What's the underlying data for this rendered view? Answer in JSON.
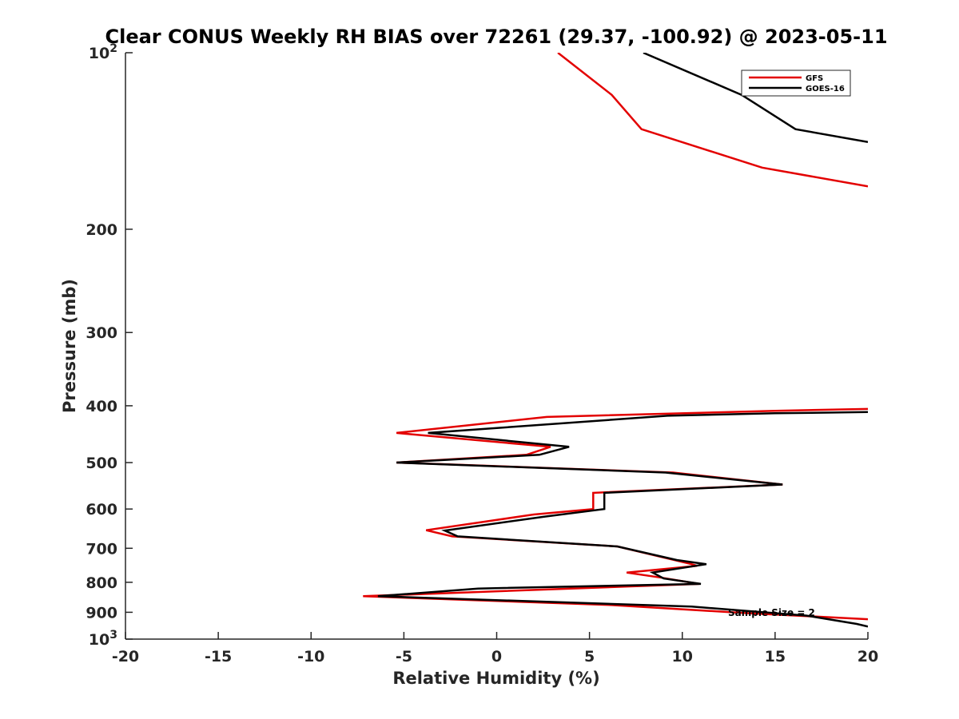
{
  "chart_data": {
    "type": "line",
    "title": "Clear CONUS Weekly RH BIAS over 72261 (29.37, -100.92) @ 2023-05-11",
    "xlabel": "Relative Humidity (%)",
    "ylabel": "Pressure (mb)",
    "xlim": [
      -20,
      20
    ],
    "ylim": [
      100,
      1000
    ],
    "yscale": "log",
    "y_reversed": true,
    "x_ticks": [
      "-20",
      "-15",
      "-10",
      "-5",
      "0",
      "5",
      "10",
      "15",
      "20"
    ],
    "y_ticks": [
      {
        "value": 100,
        "label": "10",
        "sup": "2"
      },
      {
        "value": 200,
        "label": "200",
        "sup": ""
      },
      {
        "value": 300,
        "label": "300",
        "sup": ""
      },
      {
        "value": 400,
        "label": "400",
        "sup": ""
      },
      {
        "value": 500,
        "label": "500",
        "sup": ""
      },
      {
        "value": 600,
        "label": "600",
        "sup": ""
      },
      {
        "value": 700,
        "label": "700",
        "sup": ""
      },
      {
        "value": 800,
        "label": "800",
        "sup": ""
      },
      {
        "value": 900,
        "label": "900",
        "sup": ""
      },
      {
        "value": 1000,
        "label": "10",
        "sup": "3"
      }
    ],
    "grid": false,
    "legend_position": "top-right",
    "annotation": "Sample Size = 2",
    "series": [
      {
        "name": "GFS",
        "color": "#e30000",
        "points": [
          [
            3.3,
            100
          ],
          [
            6.2,
            118
          ],
          [
            7.8,
            135
          ],
          [
            14.3,
            157
          ],
          [
            20,
            169
          ],
          [
            null,
            null
          ],
          [
            20,
            405
          ],
          [
            15,
            408
          ],
          [
            2.7,
            418
          ],
          [
            -5.4,
            445
          ],
          [
            2.9,
            470
          ],
          [
            1.6,
            485
          ],
          [
            -5.4,
            500
          ],
          [
            9.5,
            520
          ],
          [
            15.4,
            545
          ],
          [
            5.2,
            563
          ],
          [
            5.2,
            600
          ],
          [
            2.0,
            613
          ],
          [
            -3.8,
            652
          ],
          [
            -2.4,
            668
          ],
          [
            6.5,
            695
          ],
          [
            10.5,
            745
          ],
          [
            10.8,
            750
          ],
          [
            7.0,
            770
          ],
          [
            8.8,
            785
          ],
          [
            10.9,
            805
          ],
          [
            4.0,
            820
          ],
          [
            -7.2,
            845
          ],
          [
            6.2,
            875
          ],
          [
            13.2,
            902
          ],
          [
            20,
            925
          ]
        ]
      },
      {
        "name": "GOES-16",
        "color": "#000000",
        "points": [
          [
            7.9,
            100
          ],
          [
            13.2,
            118
          ],
          [
            16.1,
            135
          ],
          [
            20,
            142
          ],
          [
            null,
            null
          ],
          [
            20,
            410
          ],
          [
            15,
            412
          ],
          [
            9.2,
            416
          ],
          [
            -3.7,
            445
          ],
          [
            3.9,
            470
          ],
          [
            2.3,
            485
          ],
          [
            -5.4,
            500
          ],
          [
            9.1,
            520
          ],
          [
            15.4,
            545
          ],
          [
            5.8,
            563
          ],
          [
            5.8,
            600
          ],
          [
            2.6,
            618
          ],
          [
            -2.8,
            653
          ],
          [
            -2.1,
            668
          ],
          [
            6.5,
            695
          ],
          [
            9.7,
            733
          ],
          [
            11.3,
            745
          ],
          [
            8.4,
            770
          ],
          [
            9.0,
            788
          ],
          [
            11.0,
            805
          ],
          [
            -1.0,
            820
          ],
          [
            -6.4,
            845
          ],
          [
            10.5,
            880
          ],
          [
            16.7,
            912
          ],
          [
            19.4,
            942
          ],
          [
            20,
            952
          ]
        ]
      }
    ]
  }
}
